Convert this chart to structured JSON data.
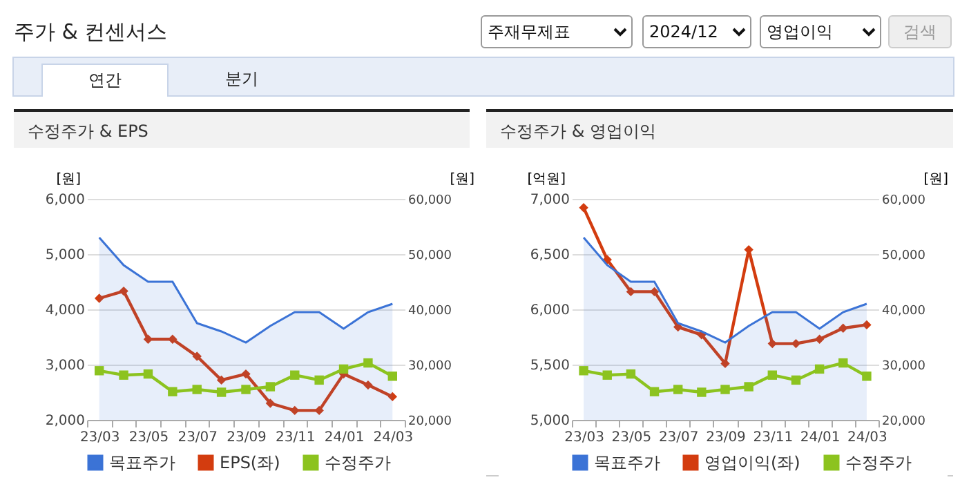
{
  "chart_data": [
    {
      "type": "line",
      "title": "수정주가 & EPS",
      "annotations": [
        "주가 & 컨센서스",
        "주재무제표",
        "2024/12",
        "영업이익",
        "검색",
        "연간",
        "분기"
      ],
      "categories": [
        "23/03",
        null,
        "23/05",
        null,
        "23/07",
        null,
        "23/09",
        null,
        "23/11",
        null,
        "24/01",
        null,
        "24/03"
      ],
      "ylabel": "[원]",
      "y2label": "[원]",
      "ylim": [
        2000,
        6000
      ],
      "yticks": [
        {
          "value": 2000,
          "label": "2,000"
        },
        {
          "value": 3000,
          "label": "3,000"
        },
        {
          "value": 4000,
          "label": "4,000"
        },
        {
          "value": 5000,
          "label": "5,000"
        },
        {
          "value": 6000,
          "label": "6,000"
        }
      ],
      "y2lim": [
        20000,
        60000
      ],
      "y2ticks": [
        {
          "value": 20000,
          "label": "20,000"
        },
        {
          "value": 30000,
          "label": "30,000"
        },
        {
          "value": 40000,
          "label": "40,000"
        },
        {
          "value": 50000,
          "label": "50,000"
        },
        {
          "value": 60000,
          "label": "60,000"
        }
      ],
      "grid": "y",
      "legend": "bottom",
      "series": [
        {
          "name": "목표주가",
          "type": "area",
          "axis": "y2",
          "color": "#3b73d6",
          "values": [
            53000,
            48000,
            45000,
            45000,
            37500,
            36000,
            34000,
            37000,
            39500,
            39500,
            36500,
            39500,
            41000
          ]
        },
        {
          "name": "EPS(좌)",
          "marker": "diamond",
          "color": "#d33c0f",
          "values": [
            4200,
            4330,
            3460,
            3460,
            3150,
            2720,
            2830,
            2300,
            2170,
            2170,
            2830,
            2630,
            2420
          ]
        },
        {
          "name": "수정주가",
          "axis": "y2",
          "marker": "square",
          "color": "#8cc31f",
          "values": [
            28900,
            28100,
            28300,
            25100,
            25500,
            25000,
            25500,
            26000,
            28100,
            27200,
            29200,
            30300,
            27900
          ]
        }
      ]
    },
    {
      "type": "line",
      "title": "수정주가 & 영업이익",
      "categories": [
        "23/03",
        null,
        "23/05",
        null,
        "23/07",
        null,
        "23/09",
        null,
        "23/11",
        null,
        "24/01",
        null,
        "24/03"
      ],
      "ylabel": "[억원]",
      "y2label": "[원]",
      "ylim": [
        5000,
        7000
      ],
      "yticks": [
        {
          "value": 5000,
          "label": "5,000"
        },
        {
          "value": 5500,
          "label": "5,500"
        },
        {
          "value": 6000,
          "label": "6,000"
        },
        {
          "value": 6500,
          "label": "6,500"
        },
        {
          "value": 7000,
          "label": "7,000"
        }
      ],
      "y2lim": [
        20000,
        60000
      ],
      "y2ticks": [
        {
          "value": 20000,
          "label": "20,000"
        },
        {
          "value": 30000,
          "label": "30,000"
        },
        {
          "value": 40000,
          "label": "40,000"
        },
        {
          "value": 50000,
          "label": "50,000"
        },
        {
          "value": 60000,
          "label": "60,000"
        }
      ],
      "grid": "y",
      "legend": "bottom",
      "series": [
        {
          "name": "목표주가",
          "type": "area",
          "axis": "y2",
          "color": "#3b73d6",
          "values": [
            53000,
            48000,
            45000,
            45000,
            37500,
            36000,
            34000,
            37000,
            39500,
            39500,
            36500,
            39500,
            41000
          ]
        },
        {
          "name": "영업이익(좌)",
          "marker": "diamond",
          "color": "#d33c0f",
          "values": [
            6920,
            6450,
            6160,
            6160,
            5840,
            5770,
            5510,
            6540,
            5690,
            5690,
            5730,
            5830,
            5860
          ]
        },
        {
          "name": "수정주가",
          "axis": "y2",
          "marker": "square",
          "color": "#8cc31f",
          "values": [
            28900,
            28100,
            28300,
            25100,
            25500,
            25000,
            25500,
            26000,
            28100,
            27200,
            29200,
            30300,
            27900
          ]
        }
      ]
    }
  ]
}
